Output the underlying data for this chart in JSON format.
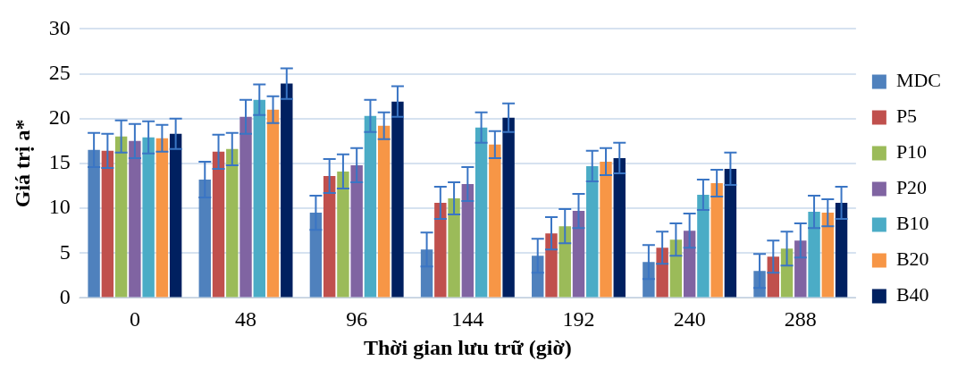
{
  "chart_data": {
    "type": "bar",
    "xlabel": "Thời gian lưu trữ (giờ)",
    "ylabel": "Giá trị a*",
    "categories": [
      "0",
      "48",
      "96",
      "144",
      "192",
      "240",
      "288"
    ],
    "ylim": [
      0,
      30
    ],
    "yticks": [
      0,
      5,
      10,
      15,
      20,
      25,
      30
    ],
    "grid": "y",
    "legend": "right",
    "series": [
      {
        "name": "MDC",
        "color": "#4f81bd",
        "values": [
          16.5,
          13.2,
          9.5,
          5.4,
          4.7,
          4.0,
          3.0
        ],
        "errors": [
          1.9,
          2.0,
          1.9,
          1.9,
          1.9,
          1.9,
          1.9
        ]
      },
      {
        "name": "P5",
        "color": "#c0504d",
        "values": [
          16.4,
          16.3,
          13.6,
          10.6,
          7.2,
          5.6,
          4.6
        ],
        "errors": [
          1.9,
          1.9,
          1.9,
          1.8,
          1.8,
          1.8,
          1.8
        ]
      },
      {
        "name": "P10",
        "color": "#9bbb59",
        "values": [
          18.0,
          16.6,
          14.1,
          11.1,
          8.0,
          6.5,
          5.5
        ],
        "errors": [
          1.8,
          1.8,
          1.9,
          1.8,
          1.9,
          1.8,
          1.9
        ]
      },
      {
        "name": "P20",
        "color": "#8064a2",
        "values": [
          17.5,
          20.2,
          14.8,
          12.7,
          9.7,
          7.5,
          6.4
        ],
        "errors": [
          1.9,
          1.9,
          1.9,
          1.9,
          1.9,
          1.9,
          1.9
        ]
      },
      {
        "name": "B10",
        "color": "#4bacc6",
        "values": [
          17.9,
          22.1,
          20.3,
          19.0,
          14.7,
          11.5,
          9.6
        ],
        "errors": [
          1.8,
          1.7,
          1.8,
          1.7,
          1.7,
          1.7,
          1.8
        ]
      },
      {
        "name": "B20",
        "color": "#f79646",
        "values": [
          17.8,
          21.0,
          19.2,
          17.1,
          15.2,
          12.8,
          9.5
        ],
        "errors": [
          1.5,
          1.5,
          1.5,
          1.5,
          1.5,
          1.5,
          1.5
        ]
      },
      {
        "name": "B40",
        "color": "#002060",
        "values": [
          18.3,
          23.9,
          21.9,
          20.1,
          15.6,
          14.4,
          10.6
        ],
        "errors": [
          1.7,
          1.7,
          1.7,
          1.6,
          1.7,
          1.8,
          1.8
        ]
      }
    ]
  }
}
